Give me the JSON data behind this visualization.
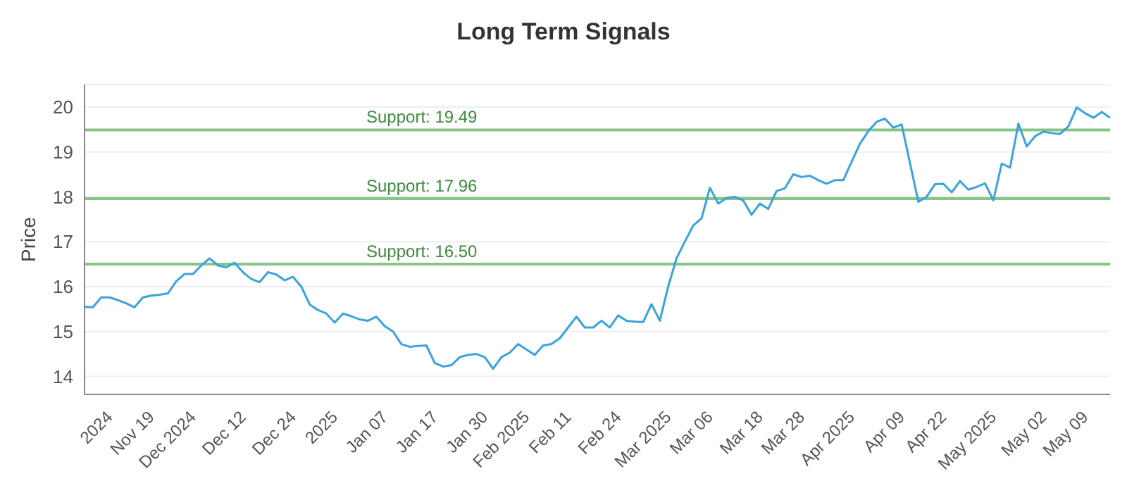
{
  "chart_data": {
    "type": "line",
    "title": "Long Term Signals",
    "ylabel": "Price",
    "categories": [
      null,
      null,
      null,
      "2024",
      null,
      null,
      null,
      null,
      "Nov 19",
      null,
      null,
      null,
      null,
      "Dec 2024",
      null,
      null,
      null,
      null,
      null,
      "Dec 12",
      null,
      null,
      null,
      null,
      null,
      "Dec 24",
      null,
      null,
      null,
      null,
      "2025",
      null,
      null,
      null,
      null,
      null,
      "Jan 07",
      null,
      null,
      null,
      null,
      null,
      "Jan 17",
      null,
      null,
      null,
      null,
      null,
      "Jan 30",
      null,
      null,
      null,
      null,
      "Feb 2025",
      null,
      null,
      null,
      null,
      "Feb 11",
      null,
      null,
      null,
      null,
      null,
      "Feb 24",
      null,
      null,
      null,
      null,
      null,
      "Mar 2025",
      null,
      null,
      null,
      null,
      "Mar 06",
      null,
      null,
      null,
      null,
      null,
      "Mar 18",
      null,
      null,
      null,
      null,
      "Mar 28",
      null,
      null,
      null,
      null,
      null,
      "Apr 2025",
      null,
      null,
      null,
      null,
      null,
      "Apr 09",
      null,
      null,
      null,
      null,
      "Apr 22",
      null,
      null,
      null,
      null,
      null,
      "May 2025",
      null,
      null,
      null,
      null,
      null,
      "May 02",
      null,
      null,
      null,
      null,
      "May 09",
      null,
      null,
      null
    ],
    "series": [
      {
        "color": "#3aa3dc",
        "values": [
          15.55,
          15.54,
          15.76,
          15.76,
          15.7,
          15.63,
          15.54,
          15.76,
          15.8,
          15.82,
          15.85,
          16.12,
          16.28,
          16.28,
          16.47,
          16.63,
          16.47,
          16.43,
          16.53,
          16.32,
          16.17,
          16.1,
          16.32,
          16.27,
          16.14,
          16.22,
          16.0,
          15.6,
          15.48,
          15.4,
          15.2,
          15.4,
          15.34,
          15.27,
          15.24,
          15.33,
          15.12,
          15.0,
          14.72,
          14.66,
          14.68,
          14.69,
          14.3,
          14.22,
          14.25,
          14.43,
          14.48,
          14.5,
          14.43,
          14.17,
          14.43,
          14.53,
          14.72,
          14.6,
          14.48,
          14.69,
          14.72,
          14.85,
          15.09,
          15.33,
          15.09,
          15.09,
          15.24,
          15.09,
          15.36,
          15.24,
          15.22,
          15.21,
          15.61,
          15.24,
          16.0,
          16.63,
          17.0,
          17.36,
          17.52,
          18.2,
          17.85,
          17.97,
          18.0,
          17.92,
          17.6,
          17.85,
          17.73,
          18.13,
          18.19,
          18.5,
          18.44,
          18.47,
          18.37,
          18.29,
          18.37,
          18.37,
          18.78,
          19.18,
          19.46,
          19.67,
          19.74,
          19.54,
          19.61,
          18.75,
          17.89,
          18.0,
          18.28,
          18.29,
          18.1,
          18.35,
          18.16,
          18.22,
          18.3,
          17.92,
          18.74,
          18.65,
          19.63,
          19.12,
          19.35,
          19.45,
          19.42,
          19.4,
          19.57,
          19.99,
          19.86,
          19.76,
          19.89,
          19.76
        ]
      }
    ],
    "ylim": [
      13.6,
      20.5
    ],
    "yticks": [
      14,
      15,
      16,
      17,
      18,
      19,
      20
    ],
    "grid": "y",
    "ref_lines": [
      {
        "axis": "y",
        "value": 19.49,
        "label": "Support: 19.49",
        "color": "#88c488"
      },
      {
        "axis": "y",
        "value": 17.96,
        "label": "Support: 17.96",
        "color": "#88c488"
      },
      {
        "axis": "y",
        "value": 16.5,
        "label": "Support: 16.50",
        "color": "#88c488"
      }
    ]
  }
}
